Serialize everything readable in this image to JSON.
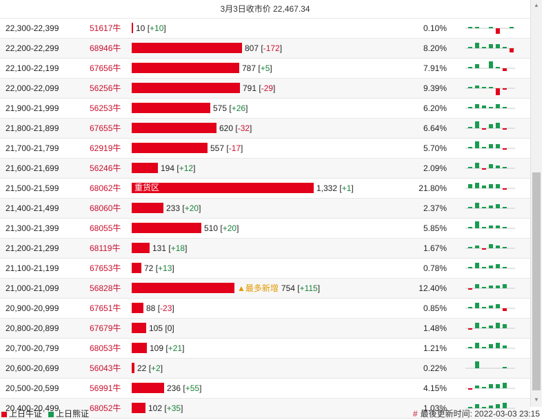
{
  "header": {
    "title": "3月3日收市价 22,467.34"
  },
  "colors": {
    "bull": "#e2001a",
    "bear": "#1a9b50",
    "neutral": "#999999"
  },
  "rows": [
    {
      "range": "22,300-22,399",
      "code": "51617牛",
      "qty": 10,
      "qty_text": "10",
      "chg": "+10",
      "pct": "0.10%",
      "label": "",
      "spark": [
        1,
        1,
        0,
        1,
        -4,
        0,
        1
      ]
    },
    {
      "range": "22,200-22,299",
      "code": "68946牛",
      "qty": 807,
      "qty_text": "807",
      "chg": "-172",
      "pct": "8.20%",
      "label": "",
      "spark": [
        1,
        4,
        1,
        3,
        3,
        1,
        -3
      ]
    },
    {
      "range": "22,100-22,199",
      "code": "67656牛",
      "qty": 787,
      "qty_text": "787",
      "chg": "+5",
      "pct": "7.91%",
      "label": "",
      "spark": [
        1,
        3,
        0,
        5,
        1,
        -2,
        0
      ]
    },
    {
      "range": "22,000-22,099",
      "code": "56256牛",
      "qty": 791,
      "qty_text": "791",
      "chg": "-29",
      "pct": "9.39%",
      "label": "",
      "spark": [
        1,
        2,
        1,
        1,
        -5,
        -1,
        0
      ]
    },
    {
      "range": "21,900-21,999",
      "code": "56253牛",
      "qty": 575,
      "qty_text": "575",
      "chg": "+26",
      "pct": "6.20%",
      "label": "",
      "spark": [
        1,
        3,
        2,
        1,
        3,
        1,
        0
      ]
    },
    {
      "range": "21,800-21,899",
      "code": "67655牛",
      "qty": 620,
      "qty_text": "620",
      "chg": "-32",
      "pct": "6.64%",
      "label": "",
      "spark": [
        1,
        5,
        -1,
        3,
        4,
        -1,
        0
      ]
    },
    {
      "range": "21,700-21,799",
      "code": "62919牛",
      "qty": 557,
      "qty_text": "557",
      "chg": "-17",
      "pct": "5.70%",
      "label": "",
      "spark": [
        1,
        5,
        1,
        3,
        3,
        -1,
        0
      ]
    },
    {
      "range": "21,600-21,699",
      "code": "56246牛",
      "qty": 194,
      "qty_text": "194",
      "chg": "+12",
      "pct": "2.09%",
      "label": "",
      "spark": [
        1,
        4,
        -1,
        3,
        2,
        1,
        0
      ]
    },
    {
      "range": "21,500-21,599",
      "code": "68062牛",
      "qty": 1332,
      "qty_text": "1,332",
      "chg": "+1",
      "pct": "21.80%",
      "label": "重货区",
      "spark": [
        3,
        4,
        2,
        3,
        3,
        -1,
        0
      ]
    },
    {
      "range": "21,400-21,499",
      "code": "68060牛",
      "qty": 233,
      "qty_text": "233",
      "chg": "+20",
      "pct": "2.37%",
      "label": "",
      "spark": [
        1,
        4,
        1,
        2,
        3,
        1,
        0
      ]
    },
    {
      "range": "21,300-21,399",
      "code": "68055牛",
      "qty": 510,
      "qty_text": "510",
      "chg": "+20",
      "pct": "5.85%",
      "label": "",
      "spark": [
        1,
        5,
        1,
        2,
        2,
        1,
        0
      ]
    },
    {
      "range": "21,200-21,299",
      "code": "68119牛",
      "qty": 131,
      "qty_text": "131",
      "chg": "+18",
      "pct": "1.67%",
      "label": "",
      "spark": [
        1,
        2,
        -1,
        3,
        2,
        1,
        0
      ]
    },
    {
      "range": "21,100-21,199",
      "code": "67653牛",
      "qty": 72,
      "qty_text": "72",
      "chg": "+13",
      "pct": "0.78%",
      "label": "",
      "spark": [
        1,
        4,
        1,
        2,
        3,
        1,
        0
      ]
    },
    {
      "range": "21,000-21,099",
      "code": "56828牛",
      "qty": 754,
      "qty_text": "754",
      "chg": "+115",
      "pct": "12.40%",
      "label": "",
      "note": "▲最多新增",
      "spark": [
        -1,
        3,
        1,
        2,
        2,
        3,
        0
      ]
    },
    {
      "range": "20,900-20,999",
      "code": "67651牛",
      "qty": 88,
      "qty_text": "88",
      "chg": "-23",
      "pct": "0.85%",
      "label": "",
      "spark": [
        1,
        4,
        1,
        2,
        3,
        -2,
        0
      ]
    },
    {
      "range": "20,800-20,899",
      "code": "67679牛",
      "qty": 105,
      "qty_text": "105",
      "chg": "0",
      "pct": "1.48%",
      "label": "",
      "spark": [
        -1,
        4,
        1,
        2,
        4,
        3,
        0
      ]
    },
    {
      "range": "20,700-20,799",
      "code": "68053牛",
      "qty": 109,
      "qty_text": "109",
      "chg": "+21",
      "pct": "1.21%",
      "label": "",
      "spark": [
        1,
        4,
        1,
        3,
        4,
        2,
        0
      ]
    },
    {
      "range": "20,600-20,699",
      "code": "56043牛",
      "qty": 22,
      "qty_text": "22",
      "chg": "+2",
      "pct": "0.22%",
      "label": "",
      "spark": [
        0,
        5,
        0,
        0,
        0,
        1,
        0
      ]
    },
    {
      "range": "20,500-20,599",
      "code": "56991牛",
      "qty": 236,
      "qty_text": "236",
      "chg": "+55",
      "pct": "4.15%",
      "label": "",
      "spark": [
        -1,
        2,
        1,
        3,
        3,
        4,
        0
      ]
    },
    {
      "range": "20,400-20,499",
      "code": "68052牛",
      "qty": 102,
      "qty_text": "102",
      "chg": "+35",
      "pct": "1.03%",
      "label": "",
      "spark": [
        1,
        3,
        1,
        2,
        3,
        4,
        0
      ]
    }
  ],
  "footer": {
    "legend_bull": "上日牛证",
    "legend_bear": "上日熊证",
    "update_hash": "#",
    "update_text": "最後更新时间: 2022-03-03 23:15"
  }
}
